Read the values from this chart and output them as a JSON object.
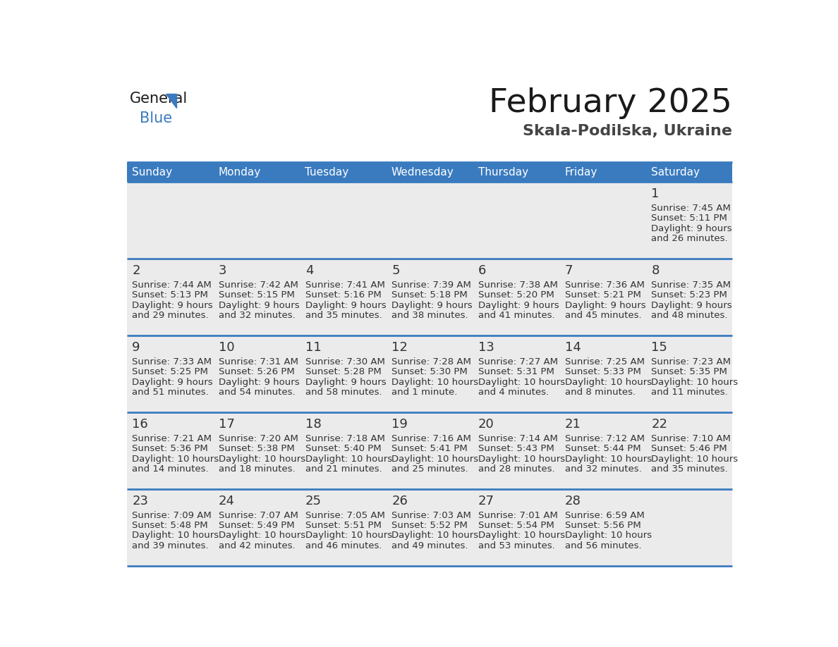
{
  "title": "February 2025",
  "subtitle": "Skala-Podilska, Ukraine",
  "header_color": "#3a7bbf",
  "header_text_color": "#ffffff",
  "cell_bg": "#ebebeb",
  "border_color": "#3a7bbf",
  "text_color": "#333333",
  "day_names": [
    "Sunday",
    "Monday",
    "Tuesday",
    "Wednesday",
    "Thursday",
    "Friday",
    "Saturday"
  ],
  "days": [
    {
      "day": 1,
      "col": 6,
      "row": 0,
      "sunrise": "7:45 AM",
      "sunset": "5:11 PM",
      "daylight1": "9 hours",
      "daylight2": "and 26 minutes."
    },
    {
      "day": 2,
      "col": 0,
      "row": 1,
      "sunrise": "7:44 AM",
      "sunset": "5:13 PM",
      "daylight1": "9 hours",
      "daylight2": "and 29 minutes."
    },
    {
      "day": 3,
      "col": 1,
      "row": 1,
      "sunrise": "7:42 AM",
      "sunset": "5:15 PM",
      "daylight1": "9 hours",
      "daylight2": "and 32 minutes."
    },
    {
      "day": 4,
      "col": 2,
      "row": 1,
      "sunrise": "7:41 AM",
      "sunset": "5:16 PM",
      "daylight1": "9 hours",
      "daylight2": "and 35 minutes."
    },
    {
      "day": 5,
      "col": 3,
      "row": 1,
      "sunrise": "7:39 AM",
      "sunset": "5:18 PM",
      "daylight1": "9 hours",
      "daylight2": "and 38 minutes."
    },
    {
      "day": 6,
      "col": 4,
      "row": 1,
      "sunrise": "7:38 AM",
      "sunset": "5:20 PM",
      "daylight1": "9 hours",
      "daylight2": "and 41 minutes."
    },
    {
      "day": 7,
      "col": 5,
      "row": 1,
      "sunrise": "7:36 AM",
      "sunset": "5:21 PM",
      "daylight1": "9 hours",
      "daylight2": "and 45 minutes."
    },
    {
      "day": 8,
      "col": 6,
      "row": 1,
      "sunrise": "7:35 AM",
      "sunset": "5:23 PM",
      "daylight1": "9 hours",
      "daylight2": "and 48 minutes."
    },
    {
      "day": 9,
      "col": 0,
      "row": 2,
      "sunrise": "7:33 AM",
      "sunset": "5:25 PM",
      "daylight1": "9 hours",
      "daylight2": "and 51 minutes."
    },
    {
      "day": 10,
      "col": 1,
      "row": 2,
      "sunrise": "7:31 AM",
      "sunset": "5:26 PM",
      "daylight1": "9 hours",
      "daylight2": "and 54 minutes."
    },
    {
      "day": 11,
      "col": 2,
      "row": 2,
      "sunrise": "7:30 AM",
      "sunset": "5:28 PM",
      "daylight1": "9 hours",
      "daylight2": "and 58 minutes."
    },
    {
      "day": 12,
      "col": 3,
      "row": 2,
      "sunrise": "7:28 AM",
      "sunset": "5:30 PM",
      "daylight1": "10 hours",
      "daylight2": "and 1 minute."
    },
    {
      "day": 13,
      "col": 4,
      "row": 2,
      "sunrise": "7:27 AM",
      "sunset": "5:31 PM",
      "daylight1": "10 hours",
      "daylight2": "and 4 minutes."
    },
    {
      "day": 14,
      "col": 5,
      "row": 2,
      "sunrise": "7:25 AM",
      "sunset": "5:33 PM",
      "daylight1": "10 hours",
      "daylight2": "and 8 minutes."
    },
    {
      "day": 15,
      "col": 6,
      "row": 2,
      "sunrise": "7:23 AM",
      "sunset": "5:35 PM",
      "daylight1": "10 hours",
      "daylight2": "and 11 minutes."
    },
    {
      "day": 16,
      "col": 0,
      "row": 3,
      "sunrise": "7:21 AM",
      "sunset": "5:36 PM",
      "daylight1": "10 hours",
      "daylight2": "and 14 minutes."
    },
    {
      "day": 17,
      "col": 1,
      "row": 3,
      "sunrise": "7:20 AM",
      "sunset": "5:38 PM",
      "daylight1": "10 hours",
      "daylight2": "and 18 minutes."
    },
    {
      "day": 18,
      "col": 2,
      "row": 3,
      "sunrise": "7:18 AM",
      "sunset": "5:40 PM",
      "daylight1": "10 hours",
      "daylight2": "and 21 minutes."
    },
    {
      "day": 19,
      "col": 3,
      "row": 3,
      "sunrise": "7:16 AM",
      "sunset": "5:41 PM",
      "daylight1": "10 hours",
      "daylight2": "and 25 minutes."
    },
    {
      "day": 20,
      "col": 4,
      "row": 3,
      "sunrise": "7:14 AM",
      "sunset": "5:43 PM",
      "daylight1": "10 hours",
      "daylight2": "and 28 minutes."
    },
    {
      "day": 21,
      "col": 5,
      "row": 3,
      "sunrise": "7:12 AM",
      "sunset": "5:44 PM",
      "daylight1": "10 hours",
      "daylight2": "and 32 minutes."
    },
    {
      "day": 22,
      "col": 6,
      "row": 3,
      "sunrise": "7:10 AM",
      "sunset": "5:46 PM",
      "daylight1": "10 hours",
      "daylight2": "and 35 minutes."
    },
    {
      "day": 23,
      "col": 0,
      "row": 4,
      "sunrise": "7:09 AM",
      "sunset": "5:48 PM",
      "daylight1": "10 hours",
      "daylight2": "and 39 minutes."
    },
    {
      "day": 24,
      "col": 1,
      "row": 4,
      "sunrise": "7:07 AM",
      "sunset": "5:49 PM",
      "daylight1": "10 hours",
      "daylight2": "and 42 minutes."
    },
    {
      "day": 25,
      "col": 2,
      "row": 4,
      "sunrise": "7:05 AM",
      "sunset": "5:51 PM",
      "daylight1": "10 hours",
      "daylight2": "and 46 minutes."
    },
    {
      "day": 26,
      "col": 3,
      "row": 4,
      "sunrise": "7:03 AM",
      "sunset": "5:52 PM",
      "daylight1": "10 hours",
      "daylight2": "and 49 minutes."
    },
    {
      "day": 27,
      "col": 4,
      "row": 4,
      "sunrise": "7:01 AM",
      "sunset": "5:54 PM",
      "daylight1": "10 hours",
      "daylight2": "and 53 minutes."
    },
    {
      "day": 28,
      "col": 5,
      "row": 4,
      "sunrise": "6:59 AM",
      "sunset": "5:56 PM",
      "daylight1": "10 hours",
      "daylight2": "and 56 minutes."
    }
  ],
  "num_rows": 5,
  "fig_width": 11.88,
  "fig_height": 9.18,
  "dpi": 100
}
